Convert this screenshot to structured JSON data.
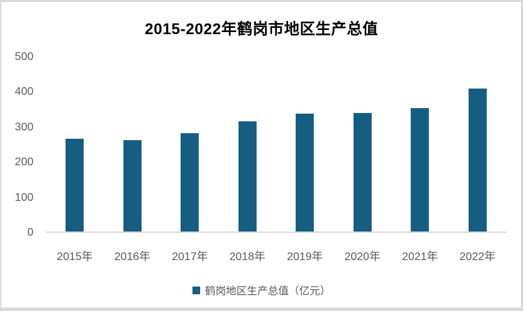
{
  "chart_data": {
    "type": "bar",
    "title": "2015-2022年鹤岗市地区生产总值",
    "categories": [
      "2015年",
      "2016年",
      "2017年",
      "2018年",
      "2019年",
      "2020年",
      "2021年",
      "2022年"
    ],
    "values": [
      266,
      262,
      283,
      316,
      338,
      341,
      354,
      410
    ],
    "series": [
      {
        "name": "鹤岗地区生产总值（亿元）",
        "values": [
          266,
          262,
          283,
          316,
          338,
          341,
          354,
          410
        ]
      }
    ],
    "xlabel": "",
    "ylabel": "",
    "ylim": [
      0,
      500
    ],
    "yticks": [
      0,
      100,
      200,
      300,
      400,
      500
    ],
    "grid": false,
    "legend_position": "bottom",
    "legend_label": "鹤岗地区生产总值（亿元）",
    "colors": {
      "bar": "#165e81",
      "axis_text": "#595959",
      "axis_line": "#d9d9d9",
      "title_text": "#000000",
      "frame_border": "#d9d9d9",
      "background": "#ffffff"
    }
  }
}
